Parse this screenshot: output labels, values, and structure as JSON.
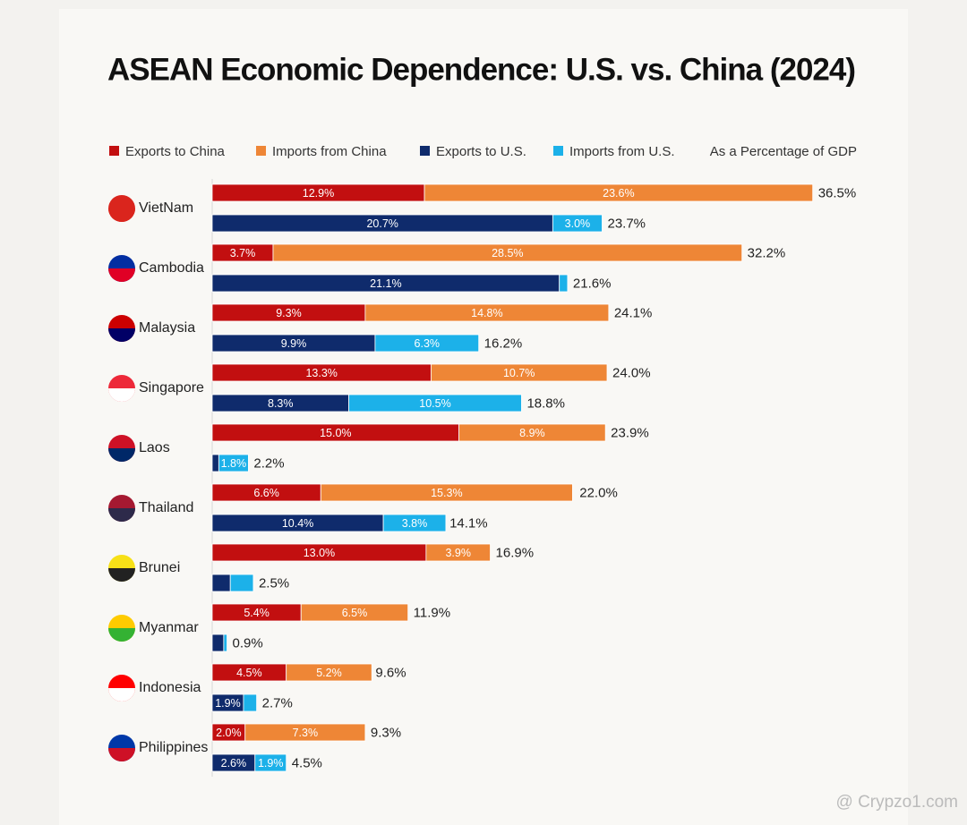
{
  "chart_data": {
    "type": "stacked-barh",
    "title": "ASEAN Economic Dependence: U.S. vs. China (2024)",
    "subtitle": "As a Percentage of GDP",
    "categories": [
      "VietNam",
      "Cambodia",
      "Malaysia",
      "Singapore",
      "Laos",
      "Thailand",
      "Brunei",
      "Myanmar",
      "Indonesia",
      "Philippines"
    ],
    "xlim": [
      0,
      40
    ],
    "series": [
      {
        "name": "Exports to China",
        "color": "#c20f10",
        "group": "china",
        "values": [
          12.9,
          3.7,
          9.3,
          13.3,
          15.0,
          6.6,
          13.0,
          5.4,
          4.5,
          2.0
        ],
        "value_labels": [
          "12.9%",
          "3.7%",
          "9.3%",
          "13.3%",
          "15.0%",
          "6.6%",
          "13.0%",
          "5.4%",
          "4.5%",
          "2.0%"
        ]
      },
      {
        "name": "Imports from China",
        "color": "#ee8636",
        "group": "china",
        "values": [
          23.6,
          28.5,
          14.8,
          10.7,
          8.9,
          15.3,
          3.9,
          6.5,
          5.2,
          7.3
        ],
        "value_labels": [
          "23.6%",
          "28.5%",
          "14.8%",
          "10.7%",
          "8.9%",
          "15.3%",
          "3.9%",
          "6.5%",
          "5.2%",
          "7.3%"
        ]
      },
      {
        "name": "Exports to U.S.",
        "color": "#0f2b6c",
        "group": "us",
        "values": [
          20.7,
          21.1,
          9.9,
          8.3,
          0.4,
          10.4,
          1.1,
          0.7,
          1.9,
          2.6
        ],
        "value_labels": [
          "20.7%",
          "21.1%",
          "9.9%",
          "8.3%",
          null,
          "10.4%",
          null,
          null,
          "1.9%",
          "2.6%"
        ]
      },
      {
        "name": "Imports from U.S.",
        "color": "#1cb1e9",
        "group": "us",
        "values": [
          3.0,
          0.5,
          6.3,
          10.5,
          1.8,
          3.8,
          1.4,
          0.2,
          0.8,
          1.9
        ],
        "value_labels": [
          "3.0%",
          null,
          "6.3%",
          "10.5%",
          "1.8%",
          "3.8%",
          null,
          null,
          null,
          "1.9%"
        ]
      }
    ],
    "china_totals": [
      36.5,
      32.2,
      24.1,
      24.0,
      23.9,
      22.0,
      16.9,
      11.9,
      9.6,
      9.3
    ],
    "china_total_labels": [
      "36.5%",
      "32.2%",
      "24.1%",
      "24.0%",
      "23.9%",
      "22.0%",
      "16.9%",
      "11.9%",
      "9.6%",
      "9.3%"
    ],
    "us_totals": [
      23.7,
      21.6,
      16.2,
      18.8,
      2.2,
      14.1,
      2.5,
      0.9,
      2.7,
      4.5
    ],
    "us_total_labels": [
      "23.7%",
      "21.6%",
      "16.2%",
      "18.8%",
      "2.2%",
      "14.1%",
      "2.5%",
      "0.9%",
      "2.7%",
      "4.5%"
    ],
    "watermark": "@ Crypzo1.com"
  }
}
